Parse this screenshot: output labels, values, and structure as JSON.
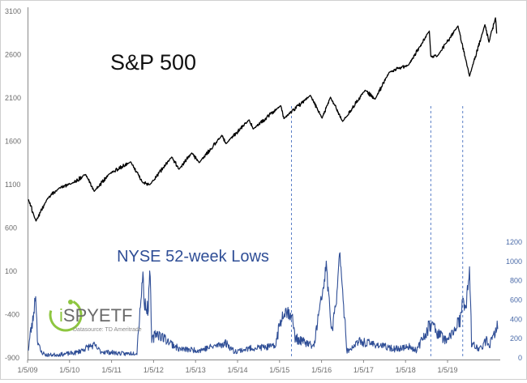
{
  "chart_data": {
    "type": "line",
    "title": "S&P 500",
    "secondary_title": "NYSE 52-week Lows",
    "x_tick_labels": [
      "1/5/09",
      "1/5/10",
      "1/5/11",
      "1/5/12",
      "1/5/13",
      "1/5/14",
      "1/5/15",
      "1/5/16",
      "1/5/17",
      "1/5/18",
      "1/5/19"
    ],
    "left_axis": {
      "ticks": [
        -900,
        -400,
        100,
        600,
        1100,
        1600,
        2100,
        2600,
        3100
      ],
      "range": [
        -900,
        3100
      ]
    },
    "right_axis": {
      "ticks": [
        0,
        200,
        400,
        600,
        800,
        1000,
        1200
      ],
      "range": [
        0,
        1200
      ]
    },
    "series": [
      {
        "name": "S&P 500",
        "axis": "left",
        "color": "#000000",
        "points": [
          [
            "2009-01-05",
            930
          ],
          [
            "2009-03-09",
            680
          ],
          [
            "2009-06-12",
            940
          ],
          [
            "2009-09-15",
            1060
          ],
          [
            "2009-12-31",
            1115
          ],
          [
            "2010-04-23",
            1217
          ],
          [
            "2010-07-02",
            1022
          ],
          [
            "2010-11-05",
            1225
          ],
          [
            "2011-04-29",
            1363
          ],
          [
            "2011-08-08",
            1120
          ],
          [
            "2011-10-04",
            1099
          ],
          [
            "2012-04-02",
            1419
          ],
          [
            "2012-06-01",
            1278
          ],
          [
            "2012-09-14",
            1465
          ],
          [
            "2012-11-15",
            1353
          ],
          [
            "2013-05-21",
            1669
          ],
          [
            "2013-06-24",
            1573
          ],
          [
            "2013-12-31",
            1848
          ],
          [
            "2014-02-03",
            1742
          ],
          [
            "2014-09-18",
            2011
          ],
          [
            "2014-10-15",
            1862
          ],
          [
            "2015-05-21",
            2131
          ],
          [
            "2015-08-25",
            1867
          ],
          [
            "2015-11-03",
            2109
          ],
          [
            "2016-02-11",
            1829
          ],
          [
            "2016-08-15",
            2190
          ],
          [
            "2016-11-04",
            2085
          ],
          [
            "2017-03-01",
            2396
          ],
          [
            "2017-08-08",
            2480
          ],
          [
            "2018-01-26",
            2873
          ],
          [
            "2018-02-08",
            2581
          ],
          [
            "2018-04-02",
            2582
          ],
          [
            "2018-09-20",
            2931
          ],
          [
            "2018-12-24",
            2351
          ],
          [
            "2019-04-30",
            2946
          ],
          [
            "2019-06-03",
            2744
          ],
          [
            "2019-07-26",
            3025
          ],
          [
            "2019-08-05",
            2844
          ]
        ]
      },
      {
        "name": "NYSE 52-week Lows",
        "axis": "right",
        "color": "#2f4e96",
        "points": [
          [
            "2009-01-05",
            60
          ],
          [
            "2009-01-20",
            180
          ],
          [
            "2009-02-10",
            300
          ],
          [
            "2009-03-06",
            600
          ],
          [
            "2009-03-20",
            150
          ],
          [
            "2009-04-15",
            40
          ],
          [
            "2009-06-01",
            10
          ],
          [
            "2009-10-01",
            15
          ],
          [
            "2010-02-05",
            30
          ],
          [
            "2010-05-20",
            80
          ],
          [
            "2010-07-01",
            90
          ],
          [
            "2010-08-25",
            40
          ],
          [
            "2011-03-15",
            20
          ],
          [
            "2011-06-20",
            30
          ],
          [
            "2011-08-08",
            800
          ],
          [
            "2011-08-19",
            500
          ],
          [
            "2011-09-22",
            420
          ],
          [
            "2011-10-03",
            900
          ],
          [
            "2011-10-20",
            120
          ],
          [
            "2011-11-25",
            200
          ],
          [
            "2012-05-18",
            70
          ],
          [
            "2012-06-04",
            60
          ],
          [
            "2012-11-15",
            50
          ],
          [
            "2013-06-24",
            110
          ],
          [
            "2013-08-30",
            40
          ],
          [
            "2014-02-03",
            70
          ],
          [
            "2014-08-01",
            80
          ],
          [
            "2014-10-15",
            420
          ],
          [
            "2014-12-16",
            380
          ],
          [
            "2015-01-15",
            150
          ],
          [
            "2015-03-25",
            120
          ],
          [
            "2015-06-20",
            80
          ],
          [
            "2015-08-24",
            560
          ],
          [
            "2015-09-29",
            870
          ],
          [
            "2015-11-13",
            200
          ],
          [
            "2015-12-14",
            420
          ],
          [
            "2016-01-20",
            1030
          ],
          [
            "2016-02-11",
            640
          ],
          [
            "2016-03-15",
            40
          ],
          [
            "2016-06-27",
            120
          ],
          [
            "2016-11-04",
            100
          ],
          [
            "2017-04-15",
            60
          ],
          [
            "2017-08-18",
            80
          ],
          [
            "2017-10-15",
            50
          ],
          [
            "2018-02-08",
            280
          ],
          [
            "2018-04-02",
            200
          ],
          [
            "2018-06-25",
            120
          ],
          [
            "2018-10-11",
            320
          ],
          [
            "2018-10-29",
            540
          ],
          [
            "2018-11-20",
            380
          ],
          [
            "2018-12-24",
            860
          ],
          [
            "2019-01-10",
            100
          ],
          [
            "2019-03-22",
            60
          ],
          [
            "2019-05-13",
            130
          ],
          [
            "2019-06-03",
            90
          ],
          [
            "2019-08-05",
            210
          ],
          [
            "2019-08-14",
            300
          ]
        ]
      }
    ],
    "annotations": {
      "dashed_vertical_lines_at": [
        "2014-12-16",
        "2018-02-08",
        "2018-10-29"
      ]
    },
    "legend": "none",
    "grid": false
  },
  "watermark": {
    "brand_i": "i",
    "brand_rest": "SPYETF",
    "datasource": "Datasource: TD Ameritrade"
  }
}
